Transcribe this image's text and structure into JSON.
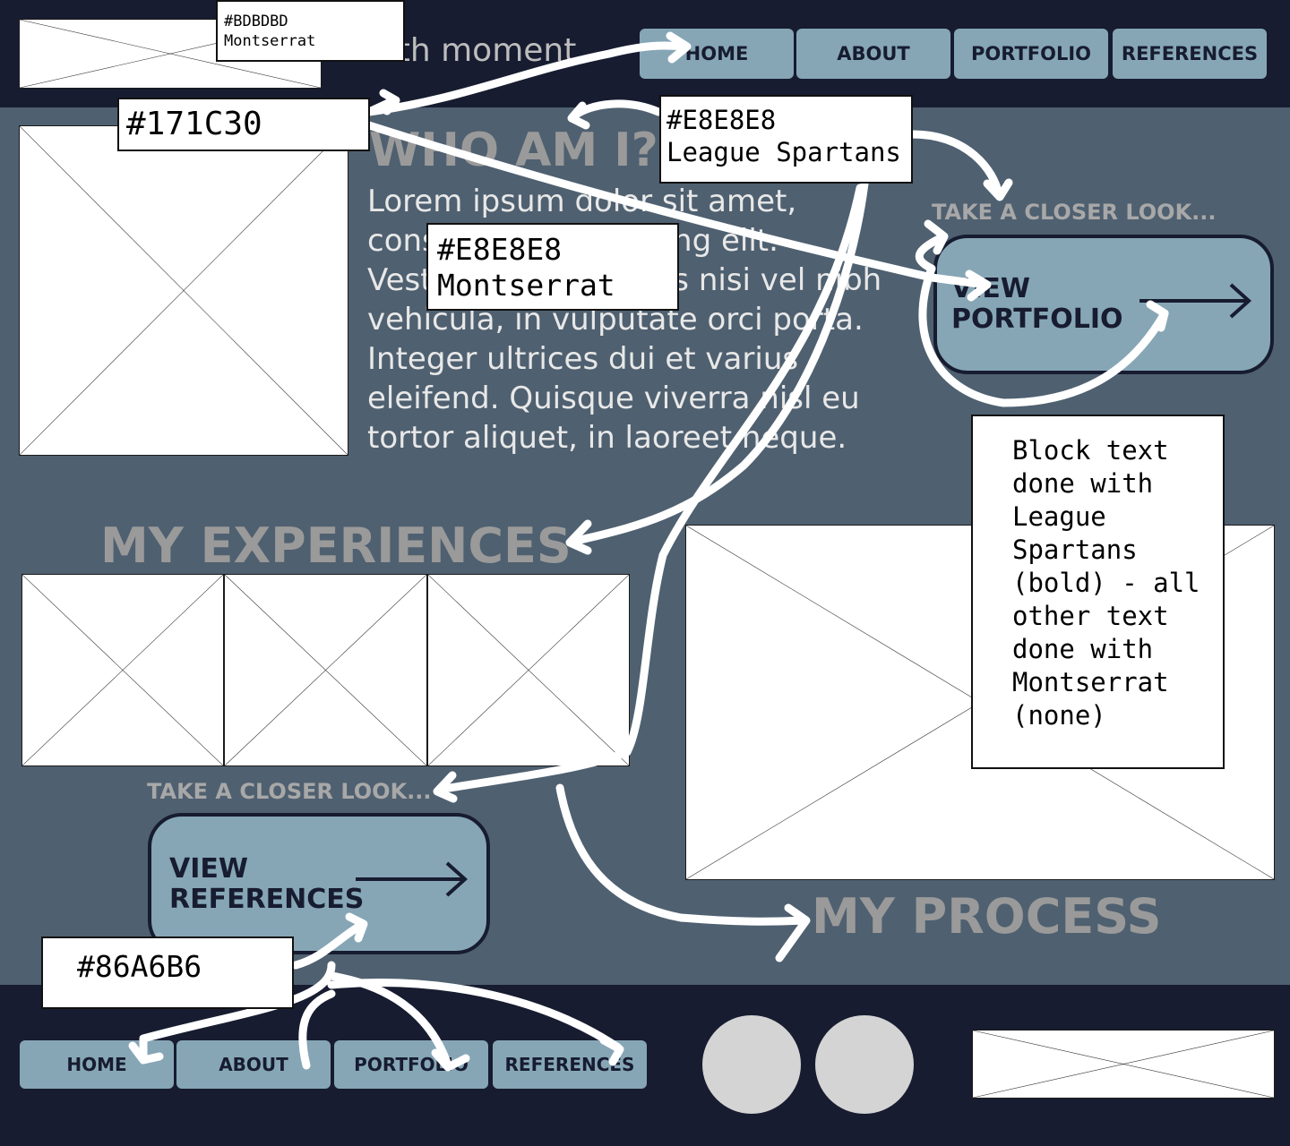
{
  "header": {
    "site_title": "sleuth moment",
    "nav": [
      "HOME",
      "ABOUT",
      "PORTFOLIO",
      "REFERENCES"
    ]
  },
  "about": {
    "heading": "WHO AM I?",
    "body": "Lorem ipsum dolor sit amet, consectetur adipiscing elit. Vestibulum ut finibus nisi vel nibh vehicula, in vulputate orci porta. Integer ultrices dui et varius eleifend. Quisque viverra nisl eu tortor aliquet, in laoreet neque."
  },
  "portfolio_cta": {
    "prompt": "TAKE A CLOSER LOOK...",
    "label": "VIEW\nPORTFOLIO"
  },
  "experiences": {
    "heading": "MY EXPERIENCES"
  },
  "references_cta": {
    "prompt": "TAKE A CLOSER LOOK...",
    "label": "VIEW\nREFERENCES"
  },
  "process": {
    "heading": "MY PROCESS"
  },
  "footer": {
    "nav": [
      "HOME",
      "ABOUT",
      "PORTFOLIO",
      "REFERENCES"
    ]
  },
  "annotations": {
    "title_style": "#BDBDBD\nMontserrat",
    "dark_color": "#171C30",
    "heading_style": "#E8E8E8\nLeague Spartans",
    "body_style": "#E8E8E8\nMontserrat",
    "accent_color": "#86A6B6",
    "font_note": "Block text done with League Spartans (bold) - all other text done with Montserrat (none)"
  },
  "colors": {
    "dark": "#171C30",
    "accent": "#86A6B6",
    "light_text": "#E8E8E8",
    "title_text": "#BDBDBD",
    "content_bg": "#4F6070"
  }
}
